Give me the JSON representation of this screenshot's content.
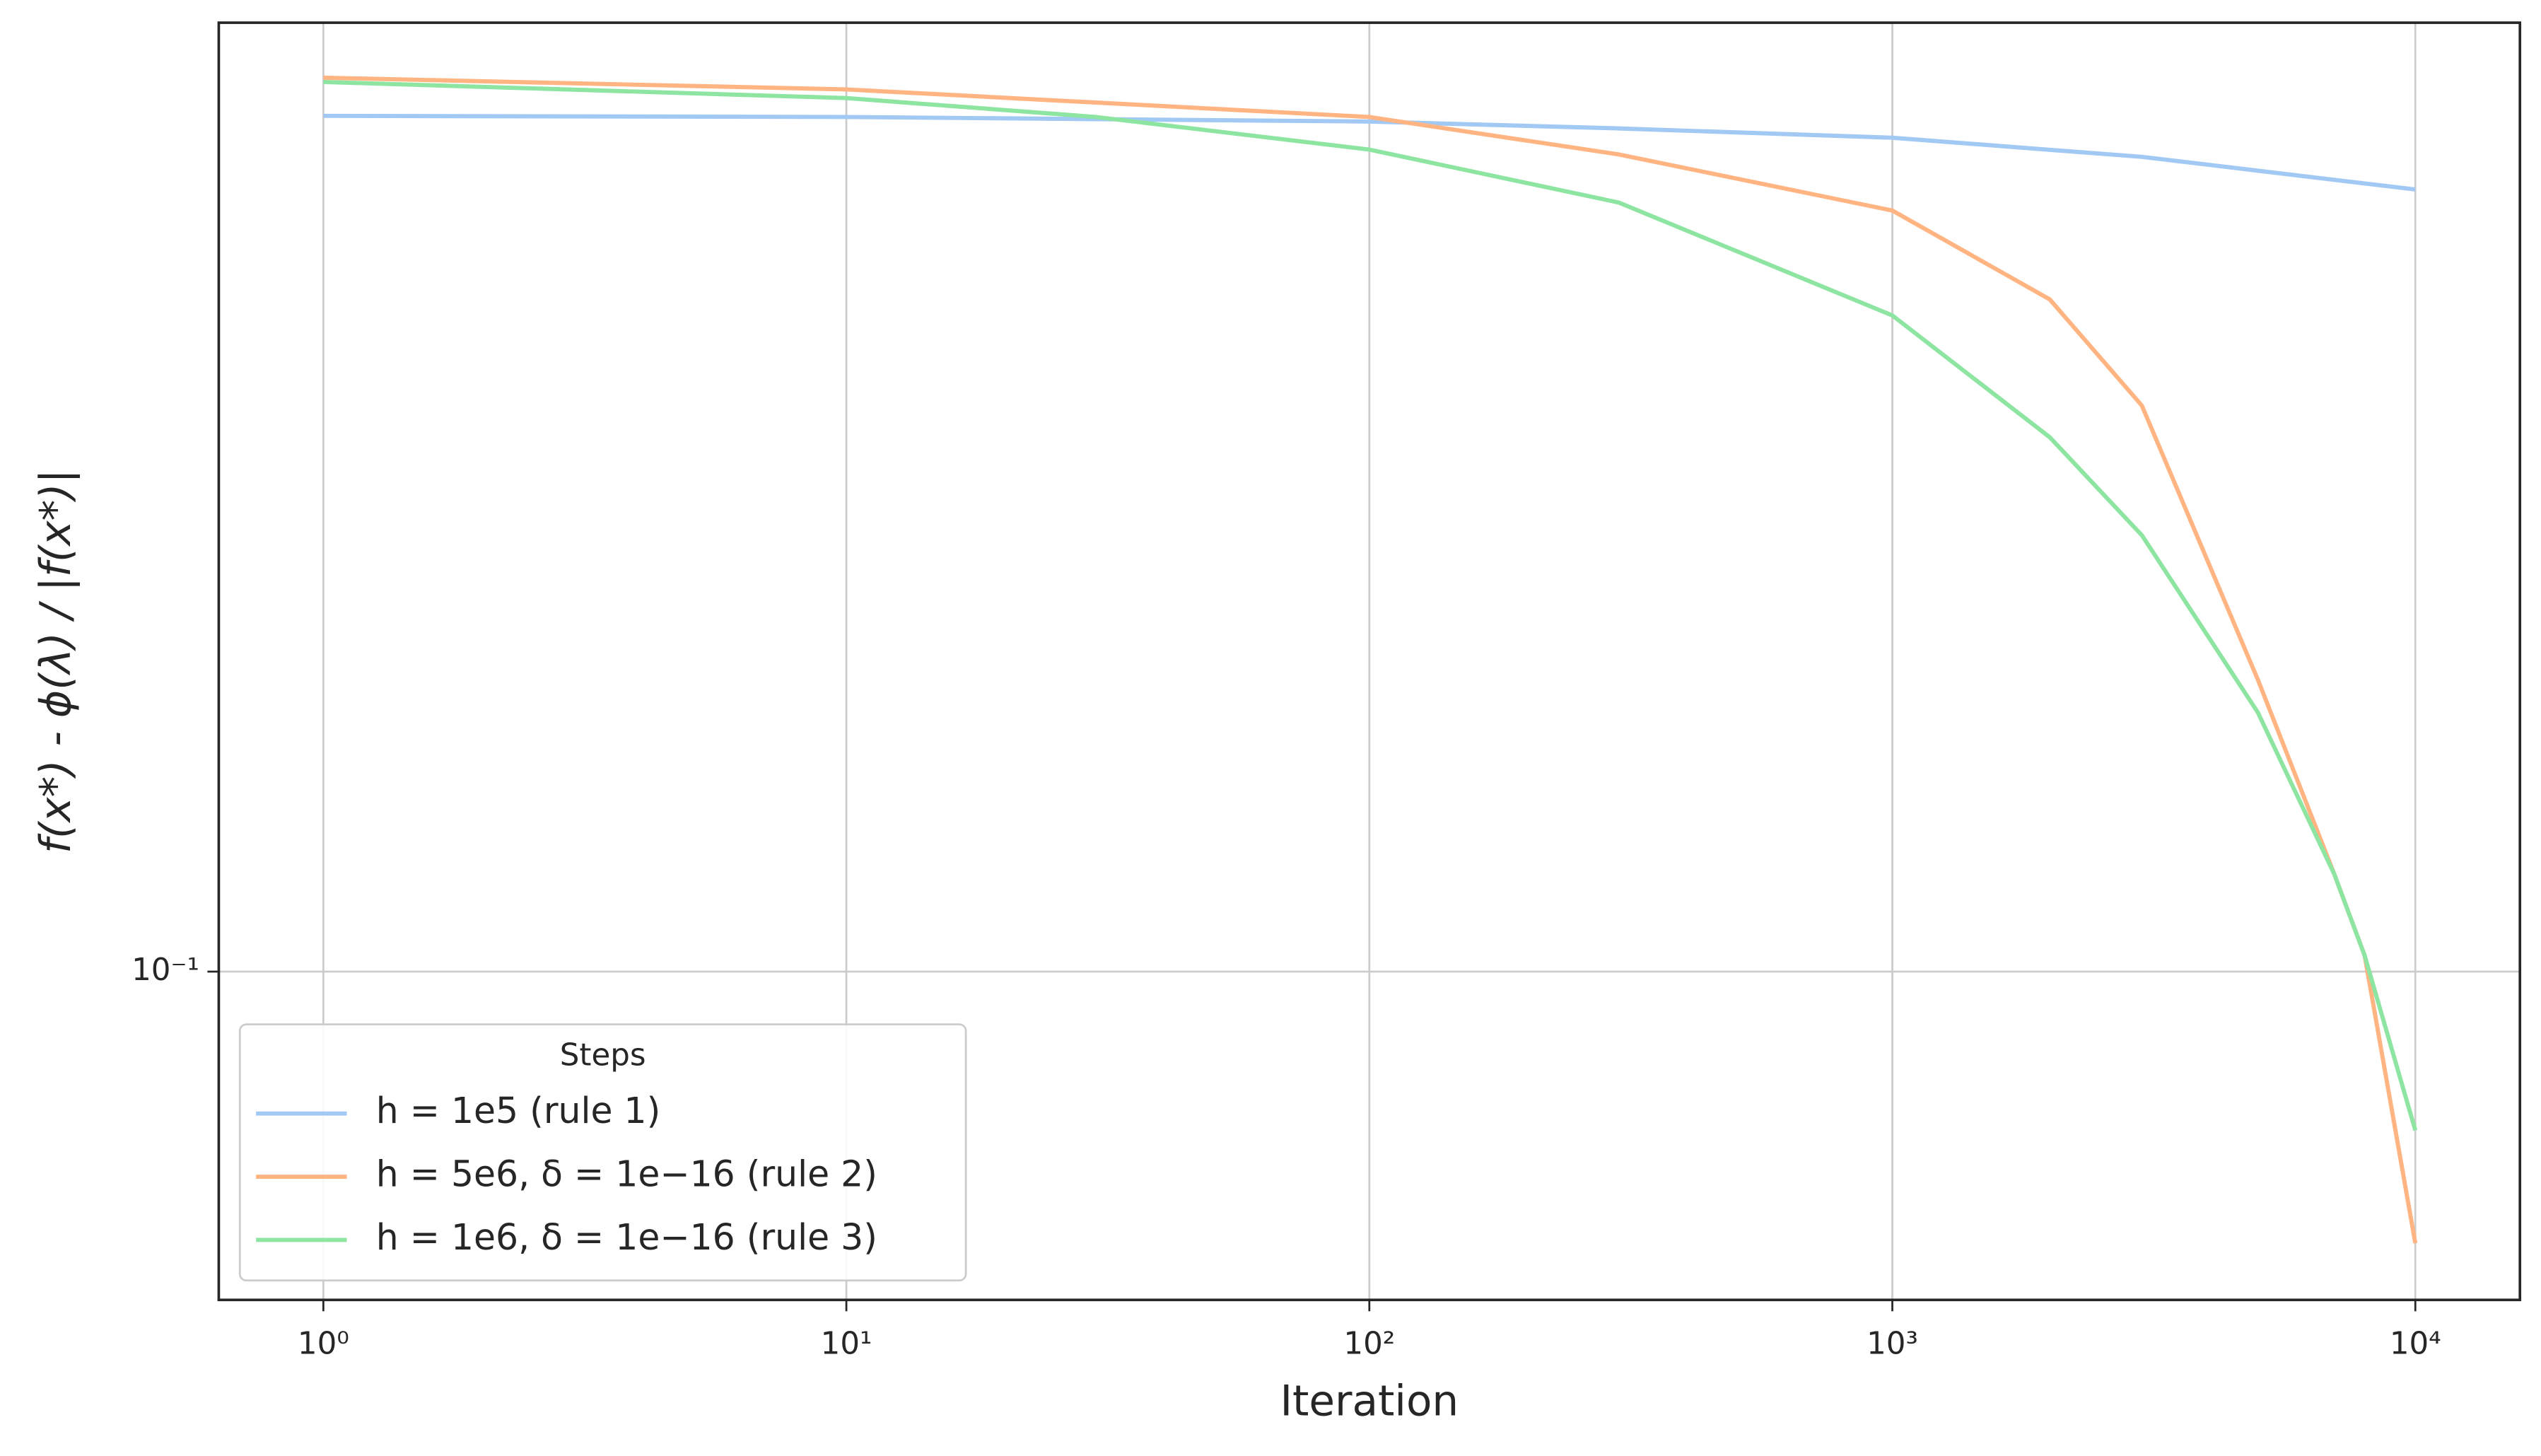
{
  "chart_data": {
    "type": "line",
    "x_label": "Iteration",
    "y_label": "f(x*) - ϕ(λ) / |f(x*)|",
    "x_scale": "log",
    "y_scale": "log",
    "xlim": [
      0.631,
      15849
    ],
    "ylim": [
      0.0547,
      0.572
    ],
    "xticks": [
      {
        "value": 1,
        "label": "10⁰"
      },
      {
        "value": 10,
        "label": "10¹"
      },
      {
        "value": 100,
        "label": "10²"
      },
      {
        "value": 1000,
        "label": "10³"
      },
      {
        "value": 10000,
        "label": "10⁴"
      }
    ],
    "yticks": [
      {
        "value": 0.1,
        "label": "10⁻¹"
      }
    ],
    "grid": true,
    "legend_title": "Steps",
    "legend_loc": "lower left",
    "series": [
      {
        "name": "h = 1e5 (rule 1)",
        "color": "#a1c9f4",
        "x": [
          1,
          10,
          100,
          300,
          1000,
          3000,
          10000
        ],
        "values": [
          0.482,
          0.481,
          0.477,
          0.471,
          0.463,
          0.447,
          0.421
        ]
      },
      {
        "name": "h = 5e6, δ = 1e−16 (rule 2)",
        "color": "#ffb482",
        "x": [
          1,
          10,
          100,
          300,
          1000,
          2000,
          3000,
          5000,
          7000,
          8000,
          10000
        ],
        "values": [
          0.517,
          0.506,
          0.481,
          0.449,
          0.405,
          0.344,
          0.283,
          0.171,
          0.1196,
          0.103,
          0.0607
        ]
      },
      {
        "name": "h = 1e6, δ = 1e−16 (rule 3)",
        "color": "#8de5a1",
        "x": [
          1,
          10,
          30,
          100,
          300,
          1000,
          2000,
          3000,
          5000,
          7000,
          8000,
          10000
        ],
        "values": [
          0.513,
          0.498,
          0.481,
          0.453,
          0.411,
          0.334,
          0.267,
          0.223,
          0.161,
          0.1196,
          0.103,
          0.0747
        ]
      }
    ]
  }
}
